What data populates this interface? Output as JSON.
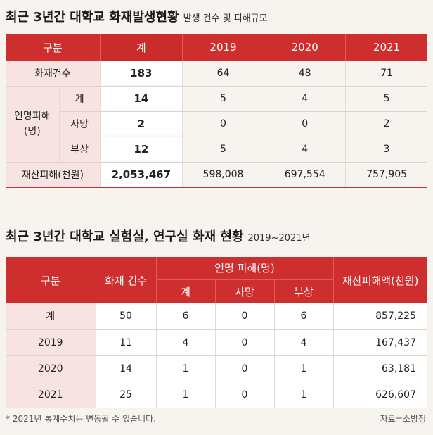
{
  "section1": {
    "title": "최근 3년간 대학교 화재발생현황",
    "subtitle": "발생 건수 및 피해규모",
    "headers": [
      "구분",
      "계",
      "2019",
      "2020",
      "2021"
    ],
    "rows": {
      "fire_count": {
        "label": "화재건수",
        "total": "183",
        "y2019": "64",
        "y2020": "48",
        "y2021": "71"
      },
      "casualty_label": "인명피해\n(명)",
      "casualty_total": {
        "label": "계",
        "total": "14",
        "y2019": "5",
        "y2020": "4",
        "y2021": "5"
      },
      "casualty_death": {
        "label": "사망",
        "total": "2",
        "y2019": "0",
        "y2020": "0",
        "y2021": "2"
      },
      "casualty_injury": {
        "label": "부상",
        "total": "12",
        "y2019": "5",
        "y2020": "4",
        "y2021": "3"
      },
      "property": {
        "label": "재산피해(천원)",
        "total": "2,053,467",
        "y2019": "598,008",
        "y2020": "697,554",
        "y2021": "757,905"
      }
    }
  },
  "section2": {
    "title": "최근 3년간 대학교 실험실, 연구실 화재 현황",
    "subtitle": "2019~2021년",
    "headers": {
      "category": "구분",
      "fire_count": "화재 건수",
      "casualty": "인명 피해(명)",
      "casualty_total": "계",
      "casualty_death": "사망",
      "casualty_injury": "부상",
      "property": "재산피해액(천원)"
    },
    "rows": [
      {
        "label": "계",
        "fires": "50",
        "total": "6",
        "death": "0",
        "injury": "6",
        "property": "857,225"
      },
      {
        "label": "2019",
        "fires": "11",
        "total": "4",
        "death": "0",
        "injury": "4",
        "property": "167,437"
      },
      {
        "label": "2020",
        "fires": "14",
        "total": "1",
        "death": "0",
        "injury": "1",
        "property": "63,181"
      },
      {
        "label": "2021",
        "fires": "25",
        "total": "1",
        "death": "0",
        "injury": "1",
        "property": "626,607"
      }
    ]
  },
  "footer": {
    "note": "* 2021년 통계수치는 변동될 수 있습니다.",
    "source": "자료=소방청"
  },
  "colors": {
    "header_red": "#cf2e2e",
    "label_pink": "#f8e3e3",
    "background": "#f7f3ee"
  }
}
